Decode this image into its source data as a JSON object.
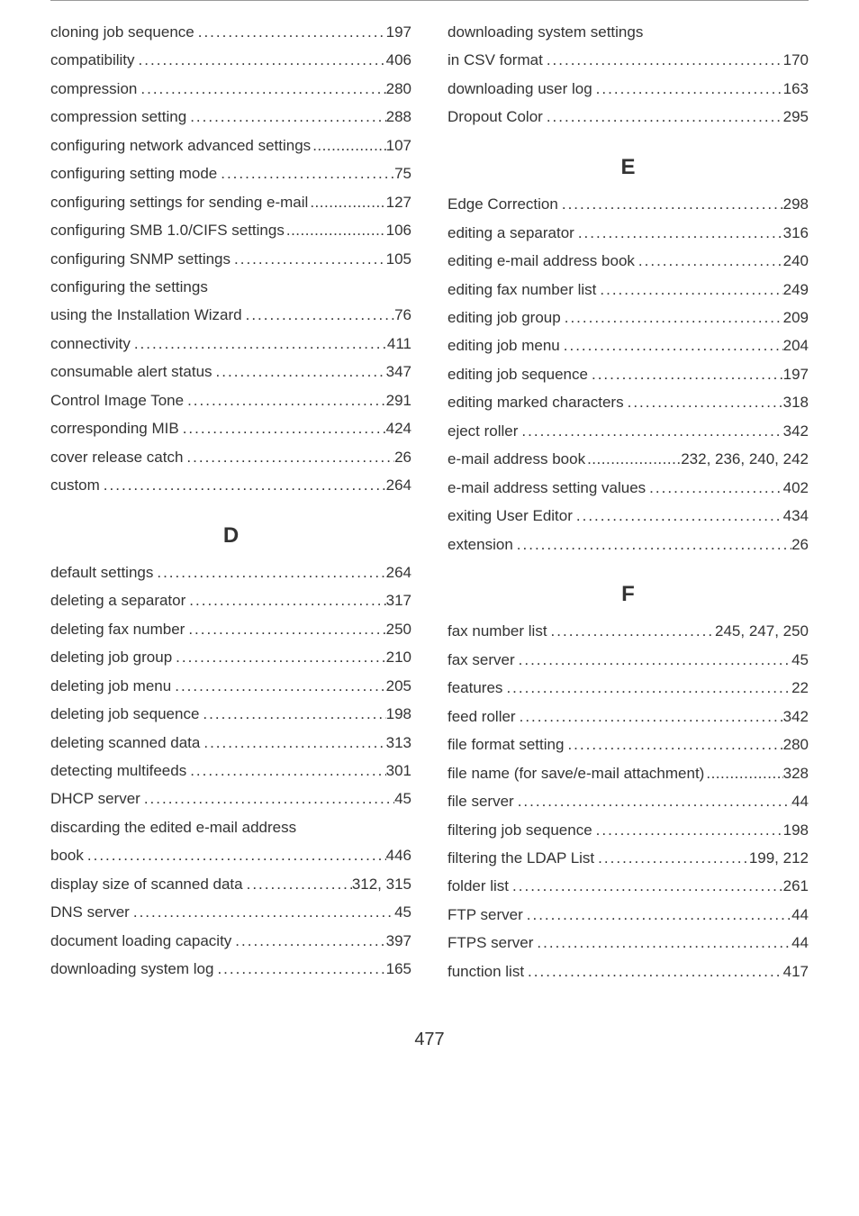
{
  "left": {
    "top": [
      {
        "label": "cloning job sequence",
        "page": "197"
      },
      {
        "label": "compatibility",
        "page": "406"
      },
      {
        "label": "compression",
        "page": "280"
      },
      {
        "label": "compression setting",
        "page": "288"
      },
      {
        "label": "configuring network advanced settings",
        "page": "107",
        "tight": true
      },
      {
        "label": "configuring setting mode",
        "page": "75"
      },
      {
        "label": "configuring settings for sending e-mail",
        "page": "127",
        "tight": true
      },
      {
        "label": "configuring SMB 1.0/CIFS settings",
        "page": "106",
        "tight": true
      },
      {
        "label": "configuring SNMP settings",
        "page": "105"
      },
      {
        "label": "configuring the settings",
        "nopage": true
      },
      {
        "label": "using the Installation Wizard",
        "page": "76"
      },
      {
        "label": "connectivity",
        "page": "411"
      },
      {
        "label": "consumable alert status",
        "page": "347"
      },
      {
        "label": "Control Image Tone",
        "page": "291"
      },
      {
        "label": "corresponding MIB",
        "page": "424"
      },
      {
        "label": "cover release catch",
        "page": "26"
      },
      {
        "label": "custom",
        "page": "264"
      }
    ],
    "heading": "D",
    "bottom": [
      {
        "label": "default settings",
        "page": "264"
      },
      {
        "label": "deleting a separator",
        "page": "317"
      },
      {
        "label": "deleting fax number",
        "page": "250"
      },
      {
        "label": "deleting job group",
        "page": "210"
      },
      {
        "label": "deleting job menu",
        "page": "205"
      },
      {
        "label": "deleting job sequence",
        "page": "198"
      },
      {
        "label": "deleting scanned data",
        "page": "313"
      },
      {
        "label": "detecting multifeeds",
        "page": "301"
      },
      {
        "label": "DHCP server",
        "page": "45"
      },
      {
        "label": "discarding the edited e-mail address",
        "nopage": true
      },
      {
        "label": "book",
        "page": "446"
      },
      {
        "label": "display size of scanned data",
        "page": "312, 315"
      },
      {
        "label": "DNS server",
        "page": "45"
      },
      {
        "label": "document loading capacity",
        "page": "397"
      },
      {
        "label": "downloading system log",
        "page": "165"
      }
    ]
  },
  "right": {
    "top": [
      {
        "label": "downloading system settings",
        "nopage": true
      },
      {
        "label": "in CSV format",
        "page": "170"
      },
      {
        "label": "downloading user log",
        "page": "163"
      },
      {
        "label": "Dropout Color",
        "page": "295"
      }
    ],
    "headingE": "E",
    "e": [
      {
        "label": "Edge Correction",
        "page": "298"
      },
      {
        "label": "editing a separator",
        "page": "316"
      },
      {
        "label": "editing e-mail address book",
        "page": "240"
      },
      {
        "label": "editing fax number list",
        "page": "249"
      },
      {
        "label": "editing job group",
        "page": "209"
      },
      {
        "label": "editing job menu",
        "page": "204"
      },
      {
        "label": "editing job sequence",
        "page": "197"
      },
      {
        "label": "editing marked characters",
        "page": "318"
      },
      {
        "label": "eject roller",
        "page": "342"
      },
      {
        "label": "e-mail address book",
        "page": "232, 236, 240, 242",
        "tight": true
      },
      {
        "label": "e-mail address setting values",
        "page": "402"
      },
      {
        "label": "exiting User Editor",
        "page": "434"
      },
      {
        "label": "extension",
        "page": "26"
      }
    ],
    "headingF": "F",
    "f": [
      {
        "label": "fax number list",
        "page": "245, 247, 250"
      },
      {
        "label": "fax server",
        "page": "45"
      },
      {
        "label": "features",
        "page": "22"
      },
      {
        "label": "feed roller",
        "page": "342"
      },
      {
        "label": "file format setting",
        "page": "280"
      },
      {
        "label": "file name (for save/e-mail attachment)",
        "page": "328",
        "tight": true
      },
      {
        "label": "file server",
        "page": "44"
      },
      {
        "label": "filtering job sequence",
        "page": "198"
      },
      {
        "label": "filtering the LDAP List",
        "page": "199, 212"
      },
      {
        "label": "folder list",
        "page": "261"
      },
      {
        "label": "FTP server",
        "page": "44"
      },
      {
        "label": "FTPS server",
        "page": "44"
      },
      {
        "label": "function list",
        "page": "417"
      }
    ]
  },
  "footer": "477"
}
